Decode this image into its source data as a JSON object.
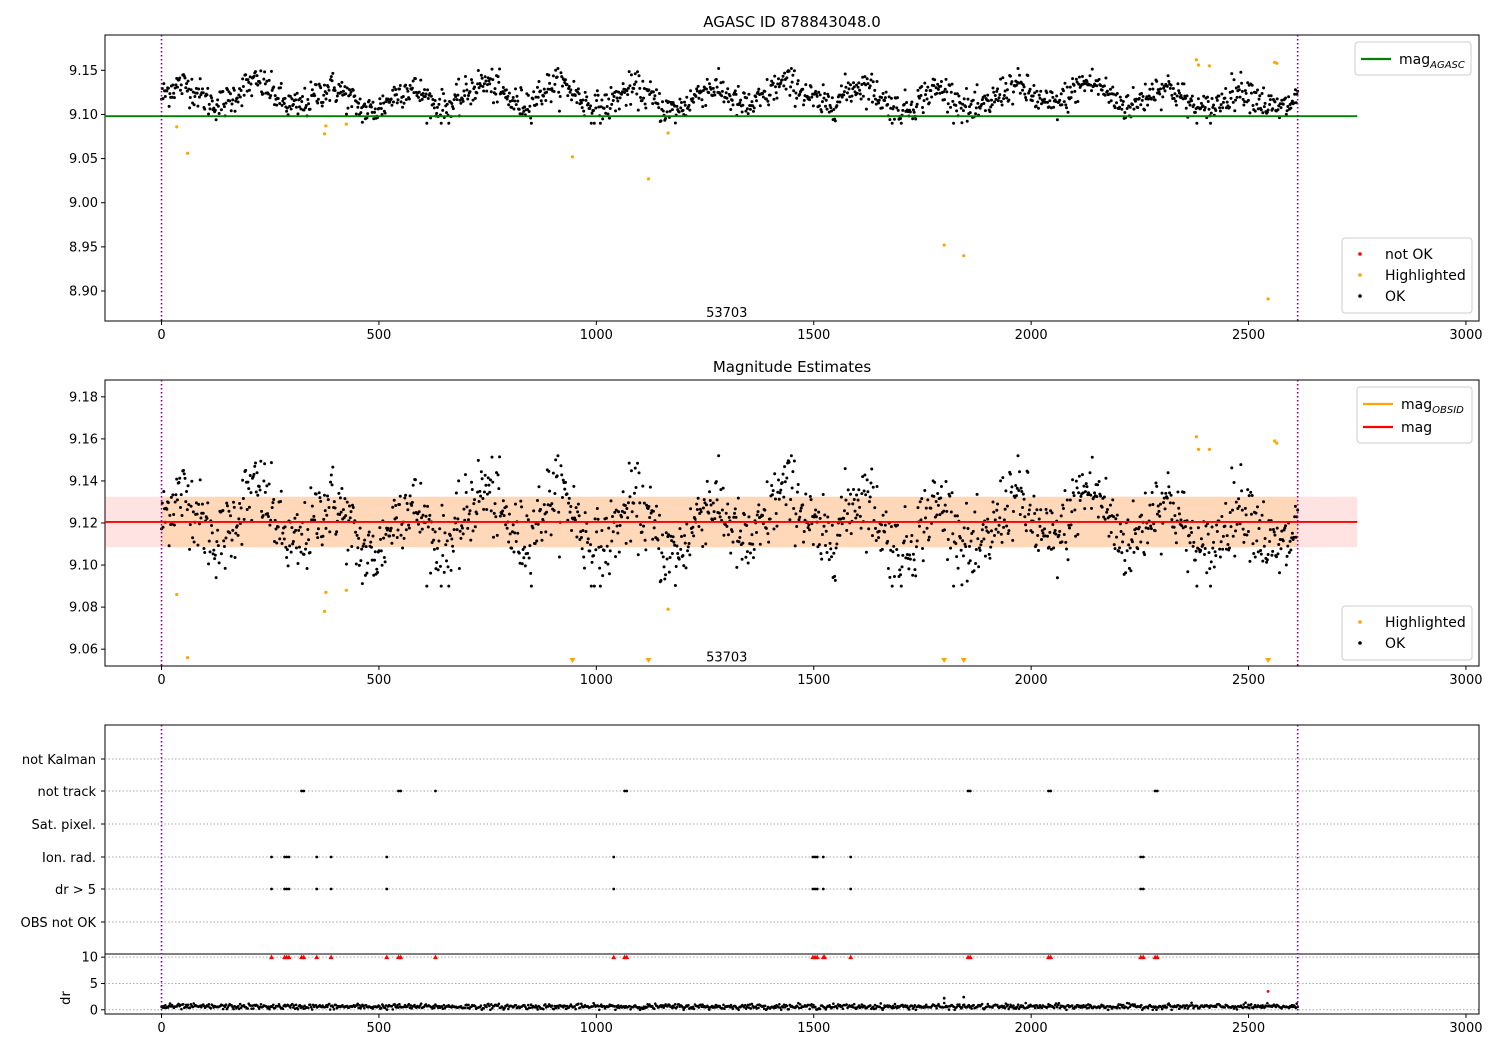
{
  "chart_data": [
    {
      "type": "scatter",
      "title": "AGASC ID 878843048.0",
      "xlim": [
        -130,
        3030
      ],
      "ylim": [
        8.866,
        9.19
      ],
      "xticks": [
        0,
        500,
        1000,
        1500,
        2000,
        2500,
        3000
      ],
      "yticks": [
        8.9,
        8.95,
        9.0,
        9.05,
        9.1,
        9.15
      ],
      "ytick_format": 2,
      "vlines": [
        0,
        2613
      ],
      "annotation": {
        "x": 1300,
        "y": 8.875,
        "text": "53703"
      },
      "mag_agasc": 9.098,
      "hline_range": [
        -130,
        2750
      ],
      "ok_band": {
        "center": 9.12,
        "amp": 0.012,
        "noise": 0.009,
        "floor": 9.09,
        "ceil": 9.152
      },
      "highlighted_points": [
        [
          35,
          9.086
        ],
        [
          60,
          9.056
        ],
        [
          375,
          9.078
        ],
        [
          378,
          9.087
        ],
        [
          425,
          9.089
        ],
        [
          945,
          9.052
        ],
        [
          1120,
          9.027
        ],
        [
          1165,
          9.079
        ],
        [
          1800,
          8.952
        ],
        [
          1845,
          8.94
        ],
        [
          2380,
          9.162
        ],
        [
          2385,
          9.156
        ],
        [
          2410,
          9.155
        ],
        [
          2545,
          8.891
        ],
        [
          2560,
          9.159
        ],
        [
          2565,
          9.158
        ]
      ],
      "legend_lines": [
        {
          "label": "mag",
          "sub": "AGASC",
          "color": "#008000"
        }
      ],
      "legend_points": [
        {
          "label": "not OK",
          "color": "#ff0000"
        },
        {
          "label": "Highlighted",
          "color": "#ffa500"
        },
        {
          "label": "OK",
          "color": "#000000"
        }
      ]
    },
    {
      "type": "scatter",
      "title": "Magnitude Estimates",
      "xlim": [
        -130,
        3030
      ],
      "ylim": [
        9.052,
        9.188
      ],
      "xticks": [
        0,
        500,
        1000,
        1500,
        2000,
        2500,
        3000
      ],
      "yticks": [
        9.06,
        9.08,
        9.1,
        9.12,
        9.14,
        9.16,
        9.18
      ],
      "ytick_format": 2,
      "vlines": [
        0,
        2613
      ],
      "annotation": {
        "x": 1300,
        "y": 9.056,
        "text": "53703"
      },
      "mag": 9.1205,
      "mag_obsid_band": [
        9.1085,
        9.1325
      ],
      "mag_obsid_band_range": [
        0,
        2613
      ],
      "mag_band": [
        9.1085,
        9.1325
      ],
      "hline_range": [
        -130,
        2750
      ],
      "ok_band": {
        "center": 9.12,
        "amp": 0.012,
        "noise": 0.009,
        "floor": 9.09,
        "ceil": 9.152
      },
      "highlighted_points": [
        [
          35,
          9.086
        ],
        [
          60,
          9.056
        ],
        [
          375,
          9.078
        ],
        [
          378,
          9.087
        ],
        [
          425,
          9.088
        ],
        [
          1165,
          9.079
        ],
        [
          2380,
          9.161
        ],
        [
          2385,
          9.155
        ],
        [
          2410,
          9.155
        ],
        [
          2560,
          9.159
        ],
        [
          2565,
          9.158
        ]
      ],
      "clipped_markers": [
        945,
        1120,
        1800,
        1845,
        2545
      ],
      "legend_lines": [
        {
          "label": "mag",
          "sub": "OBSID",
          "color": "#ffa500"
        },
        {
          "label": "mag",
          "sub": "",
          "color": "#ff0000"
        }
      ],
      "legend_points": [
        {
          "label": "Highlighted",
          "color": "#ffa500"
        },
        {
          "label": "OK",
          "color": "#000000"
        }
      ]
    },
    {
      "type": "scatter",
      "title": "",
      "xlim": [
        -130,
        3030
      ],
      "xticks": [
        0,
        500,
        1000,
        1500,
        2000,
        2500,
        3000
      ],
      "vlines": [
        0,
        2613
      ],
      "flag_rows": [
        "not Kalman",
        "not track",
        "Sat. pixel.",
        "Ion. rad.",
        "dr > 5",
        "OBS not OK"
      ],
      "flag_points": {
        "not track": [
          322,
          327,
          545,
          550,
          630,
          1065,
          1070,
          1855,
          1860,
          2040,
          2045,
          2285,
          2290
        ],
        "Ion. rad.": [
          253,
          283,
          288,
          293,
          357,
          390,
          518,
          1040,
          1498,
          1503,
          1508,
          1522,
          1585,
          2252,
          2258
        ],
        "dr > 5": [
          253,
          283,
          288,
          293,
          357,
          390,
          518,
          1040,
          1498,
          1503,
          1508,
          1522,
          1585,
          2252,
          2258
        ]
      },
      "dr": {
        "ylabel": "dr",
        "ylim": [
          -0.8,
          10.6
        ],
        "yticks": [
          0,
          5,
          10
        ],
        "baseline": 0.6,
        "clipped_red": [
          253,
          283,
          288,
          293,
          322,
          327,
          357,
          390,
          518,
          545,
          550,
          630,
          1040,
          1065,
          1070,
          1498,
          1503,
          1508,
          1522,
          1525,
          1585,
          1855,
          1860,
          2040,
          2045,
          2252,
          2258,
          2285,
          2290
        ],
        "outliers": [
          [
            1800,
            2.2
          ],
          [
            1845,
            2.4
          ],
          [
            2545,
            3.5
          ]
        ]
      }
    }
  ]
}
